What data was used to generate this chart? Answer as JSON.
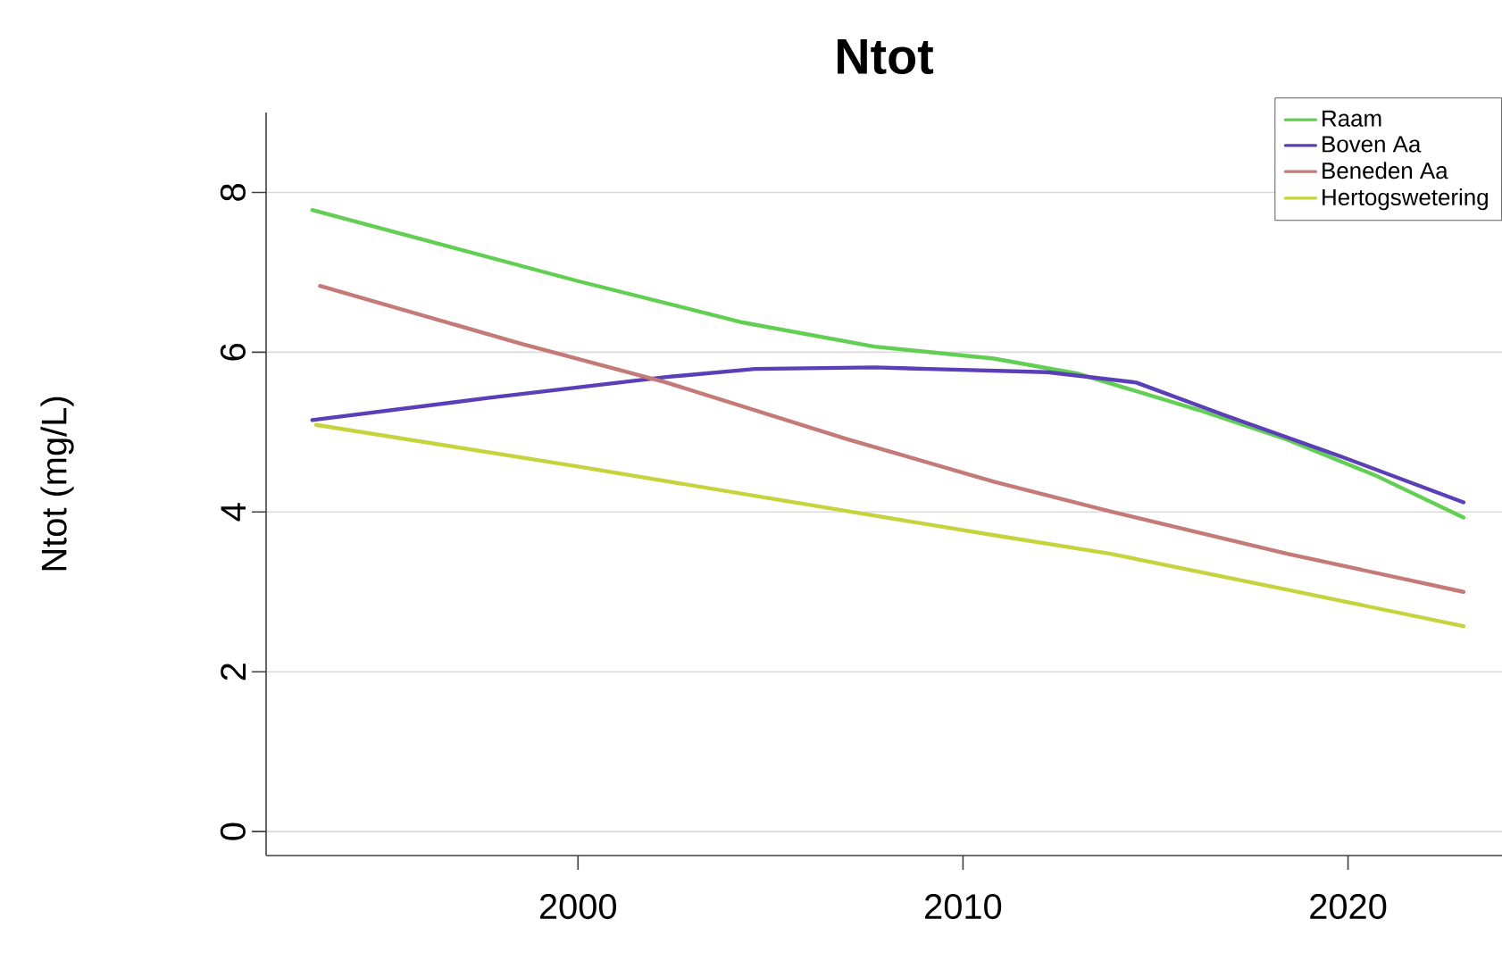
{
  "chart_data": {
    "type": "line",
    "title": "Ntot",
    "ylabel": "Ntot (mg/L)",
    "xlim": [
      1991.9,
      2024.0
    ],
    "ylim": [
      -0.3,
      9.0
    ],
    "xticks": [
      2000,
      2010,
      2020
    ],
    "yticks": [
      0,
      2,
      4,
      6,
      8
    ],
    "grid": "y",
    "legend": "top right",
    "marker": "none",
    "line_style": "solid",
    "series": [
      {
        "name": "Raam",
        "color": "#61cf52",
        "x": [
          1993.1,
          1996.2,
          2000.0,
          2004.3,
          2007.7,
          2010.8,
          2013.0,
          2016.1,
          2018.4,
          2020.7,
          2023.0
        ],
        "values": [
          7.78,
          7.38,
          6.89,
          6.37,
          6.07,
          5.92,
          5.73,
          5.28,
          4.91,
          4.46,
          3.93
        ]
      },
      {
        "name": "Boven Aa",
        "color": "#5a3fb8",
        "x": [
          1993.1,
          1997.7,
          2002.3,
          2004.6,
          2007.7,
          2009.1,
          2012.2,
          2014.5,
          2016.8,
          2019.9,
          2023.0
        ],
        "values": [
          5.15,
          5.43,
          5.69,
          5.79,
          5.81,
          5.79,
          5.75,
          5.62,
          5.21,
          4.68,
          4.12
        ]
      },
      {
        "name": "Beneden Aa",
        "color": "#c47a76",
        "x": [
          1993.3,
          1998.5,
          2002.3,
          2007.0,
          2010.8,
          2013.8,
          2018.4,
          2023.0
        ],
        "values": [
          6.83,
          6.11,
          5.62,
          4.91,
          4.38,
          4.01,
          3.48,
          3.0
        ]
      },
      {
        "name": "Hertogswetering",
        "color": "#c5d43c",
        "x": [
          1993.2,
          2000.0,
          2007.0,
          2010.8,
          2013.8,
          2018.4,
          2023.0
        ],
        "values": [
          5.09,
          4.57,
          4.01,
          3.71,
          3.48,
          3.03,
          2.57
        ]
      }
    ]
  }
}
